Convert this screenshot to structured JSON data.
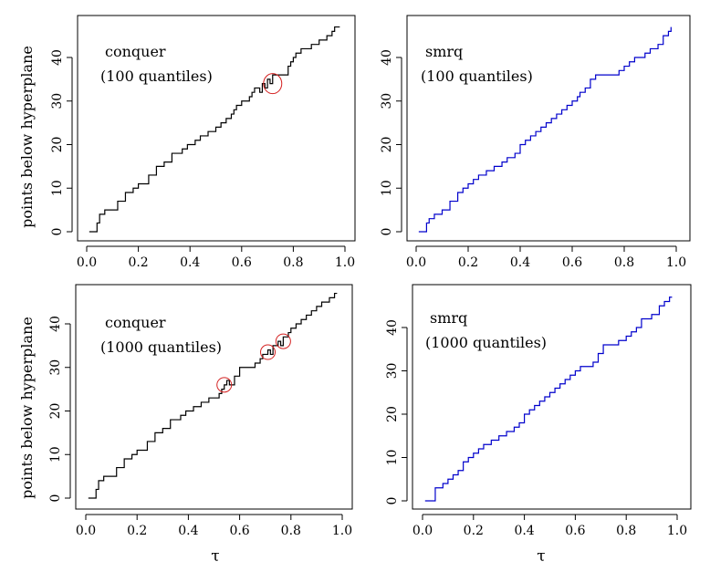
{
  "figure": {
    "ylabel": "points below hyperplane",
    "xlabel": "τ"
  },
  "chart_data": [
    {
      "type": "line",
      "step": true,
      "color": "#000000",
      "title": "conquer (100 quantiles)",
      "annotation": [
        "conquer",
        "(100 quantiles)"
      ],
      "xlabel": "",
      "ylabel": "points below hyperplane",
      "xlim": [
        0,
        1
      ],
      "ylim": [
        0,
        47
      ],
      "xticks": [
        0.0,
        0.2,
        0.4,
        0.6,
        0.8,
        1.0
      ],
      "xtick_labels": [
        "0.0",
        "0.2",
        "0.4",
        "0.6",
        "0.8",
        "1.0"
      ],
      "yticks": [
        0,
        10,
        20,
        30,
        40
      ],
      "ytick_labels": [
        "0",
        "10",
        "20",
        "30",
        "40"
      ],
      "x": [
        0.01,
        0.04,
        0.05,
        0.07,
        0.12,
        0.15,
        0.18,
        0.2,
        0.24,
        0.27,
        0.3,
        0.33,
        0.37,
        0.39,
        0.42,
        0.43,
        0.44,
        0.47,
        0.5,
        0.52,
        0.54,
        0.56,
        0.57,
        0.58,
        0.6,
        0.61,
        0.63,
        0.64,
        0.65,
        0.67,
        0.68,
        0.69,
        0.7,
        0.71,
        0.72,
        0.73,
        0.74,
        0.78,
        0.79,
        0.8,
        0.81,
        0.83,
        0.85,
        0.87,
        0.88,
        0.9,
        0.93,
        0.95,
        0.96,
        0.98
      ],
      "y": [
        0,
        2,
        4,
        5,
        7,
        9,
        10,
        11,
        13,
        15,
        16,
        18,
        19,
        20,
        21,
        21,
        22,
        23,
        24,
        25,
        26,
        27,
        28,
        29,
        30,
        30,
        31,
        32,
        33,
        32,
        34,
        33,
        35,
        34,
        36,
        36,
        36,
        38,
        39,
        40,
        41,
        42,
        42,
        43,
        43,
        44,
        45,
        46,
        47,
        47
      ],
      "highlights": [
        {
          "x": 0.72,
          "y": 34
        }
      ]
    },
    {
      "type": "line",
      "step": true,
      "color": "#0000cc",
      "title": "smrq (100 quantiles)",
      "annotation": [
        "smrq",
        "(100 quantiles)"
      ],
      "xlabel": "",
      "ylabel": "",
      "xlim": [
        0,
        1
      ],
      "ylim": [
        0,
        47
      ],
      "xticks": [
        0.0,
        0.2,
        0.4,
        0.6,
        0.8,
        1.0
      ],
      "xtick_labels": [
        "0.0",
        "0.2",
        "0.4",
        "0.6",
        "0.8",
        "1.0"
      ],
      "yticks": [
        0,
        10,
        20,
        30,
        40
      ],
      "ytick_labels": [
        "0",
        "10",
        "20",
        "30",
        "40"
      ],
      "x": [
        0.01,
        0.04,
        0.05,
        0.07,
        0.1,
        0.13,
        0.16,
        0.18,
        0.2,
        0.22,
        0.24,
        0.27,
        0.3,
        0.33,
        0.35,
        0.38,
        0.4,
        0.42,
        0.44,
        0.46,
        0.48,
        0.5,
        0.52,
        0.54,
        0.56,
        0.58,
        0.6,
        0.62,
        0.63,
        0.65,
        0.67,
        0.69,
        0.72,
        0.76,
        0.78,
        0.8,
        0.82,
        0.84,
        0.86,
        0.88,
        0.9,
        0.93,
        0.95,
        0.97,
        0.98
      ],
      "y": [
        0,
        2,
        3,
        4,
        5,
        7,
        9,
        10,
        11,
        12,
        13,
        14,
        15,
        16,
        17,
        18,
        20,
        21,
        22,
        23,
        24,
        25,
        26,
        27,
        28,
        29,
        30,
        31,
        32,
        33,
        35,
        36,
        36,
        36,
        37,
        38,
        39,
        40,
        40,
        41,
        42,
        43,
        45,
        46,
        47
      ],
      "highlights": []
    },
    {
      "type": "line",
      "step": true,
      "color": "#000000",
      "title": "conquer (1000 quantiles)",
      "annotation": [
        "conquer",
        "(1000 quantiles)"
      ],
      "xlabel": "τ",
      "ylabel": "points below hyperplane",
      "xlim": [
        0,
        1
      ],
      "ylim": [
        0,
        47
      ],
      "xticks": [
        0.0,
        0.2,
        0.4,
        0.6,
        0.8,
        1.0
      ],
      "xtick_labels": [
        "0.0",
        "0.2",
        "0.4",
        "0.6",
        "0.8",
        "1.0"
      ],
      "yticks": [
        0,
        10,
        20,
        30,
        40
      ],
      "ytick_labels": [
        "0",
        "10",
        "20",
        "30",
        "40"
      ],
      "x": [
        0.01,
        0.04,
        0.05,
        0.07,
        0.12,
        0.15,
        0.18,
        0.2,
        0.24,
        0.27,
        0.3,
        0.33,
        0.37,
        0.39,
        0.42,
        0.45,
        0.48,
        0.52,
        0.53,
        0.54,
        0.55,
        0.56,
        0.58,
        0.6,
        0.63,
        0.66,
        0.68,
        0.69,
        0.7,
        0.71,
        0.72,
        0.73,
        0.75,
        0.76,
        0.77,
        0.79,
        0.8,
        0.82,
        0.84,
        0.86,
        0.88,
        0.9,
        0.92,
        0.95,
        0.97,
        0.98
      ],
      "y": [
        0,
        2,
        4,
        5,
        7,
        9,
        10,
        11,
        13,
        15,
        16,
        18,
        19,
        20,
        21,
        22,
        23,
        24,
        25,
        26,
        27,
        26,
        28,
        30,
        30,
        31,
        32,
        33,
        33,
        34,
        33,
        35,
        36,
        35,
        37,
        38,
        39,
        40,
        41,
        42,
        43,
        44,
        45,
        46,
        47,
        47
      ],
      "highlights": [
        {
          "x": 0.54,
          "y": 26
        },
        {
          "x": 0.71,
          "y": 33.5
        },
        {
          "x": 0.77,
          "y": 36
        }
      ]
    },
    {
      "type": "line",
      "step": true,
      "color": "#0000cc",
      "title": "smrq (1000 quantiles)",
      "annotation": [
        "smrq",
        "(1000 quantiles)"
      ],
      "xlabel": "τ",
      "ylabel": "",
      "xlim": [
        0,
        1
      ],
      "ylim": [
        0,
        47
      ],
      "xticks": [
        0.0,
        0.2,
        0.4,
        0.6,
        0.8,
        1.0
      ],
      "xtick_labels": [
        "0.0",
        "0.2",
        "0.4",
        "0.6",
        "0.8",
        "1.0"
      ],
      "yticks": [
        0,
        10,
        20,
        30,
        40
      ],
      "ytick_labels": [
        "0",
        "10",
        "20",
        "30",
        "40"
      ],
      "x": [
        0.01,
        0.05,
        0.08,
        0.1,
        0.12,
        0.14,
        0.16,
        0.18,
        0.2,
        0.22,
        0.24,
        0.27,
        0.3,
        0.33,
        0.36,
        0.38,
        0.4,
        0.42,
        0.44,
        0.46,
        0.48,
        0.5,
        0.52,
        0.54,
        0.56,
        0.58,
        0.6,
        0.62,
        0.64,
        0.67,
        0.69,
        0.71,
        0.74,
        0.77,
        0.8,
        0.82,
        0.84,
        0.86,
        0.88,
        0.9,
        0.93,
        0.95,
        0.97,
        0.98
      ],
      "y": [
        0,
        3,
        4,
        5,
        6,
        7,
        9,
        10,
        11,
        12,
        13,
        14,
        15,
        16,
        17,
        18,
        20,
        21,
        22,
        23,
        24,
        25,
        26,
        27,
        28,
        29,
        30,
        31,
        31,
        32,
        34,
        36,
        36,
        37,
        38,
        39,
        40,
        42,
        42,
        43,
        45,
        46,
        47,
        47
      ],
      "highlights": []
    }
  ]
}
